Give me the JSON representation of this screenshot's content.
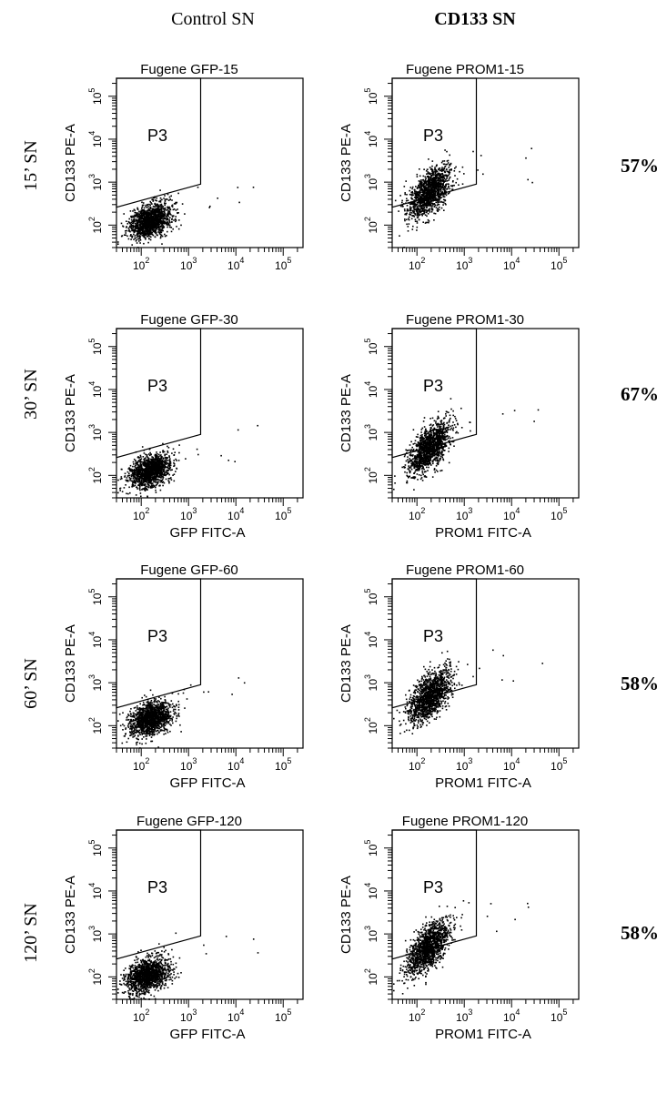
{
  "header": {
    "col_left": "Control SN",
    "col_right": "CD133 SN"
  },
  "rows": [
    {
      "label": "15’ SN",
      "percent": "57%"
    },
    {
      "label": "30’ SN",
      "percent": "67%"
    },
    {
      "label": "60’ SN",
      "percent": "58%"
    },
    {
      "label": "120’ SN",
      "percent": "58%"
    }
  ],
  "chart_data": [
    {
      "type": "scatter",
      "title": "Fugene GFP-15",
      "ylabel": "CD133 PE-A",
      "xlabel": "",
      "gate_label": "P3",
      "x_scale": "log",
      "y_scale": "log",
      "xticks": [
        "10^2",
        "10^3",
        "10^4",
        "10^5"
      ],
      "yticks": [
        "10^2",
        "10^3",
        "10^4",
        "10^5"
      ],
      "cloud": {
        "x_center": 150,
        "y_center": 130,
        "density": "dense"
      }
    },
    {
      "type": "scatter",
      "title": "Fugene PROM1-15",
      "ylabel": "CD133 PE-A",
      "xlabel": "",
      "gate_label": "P3",
      "x_scale": "log",
      "y_scale": "log",
      "xticks": [
        "10^2",
        "10^3",
        "10^4",
        "10^5"
      ],
      "yticks": [
        "10^2",
        "10^3",
        "10^4",
        "10^5"
      ],
      "cloud": {
        "x_center": 180,
        "y_center": 600,
        "density": "dense"
      }
    },
    {
      "type": "scatter",
      "title": "Fugene GFP-30",
      "ylabel": "CD133 PE-A",
      "xlabel": "GFP FITC-A",
      "gate_label": "P3",
      "x_scale": "log",
      "y_scale": "log",
      "xticks": [
        "10^2",
        "10^3",
        "10^4",
        "10^5"
      ],
      "yticks": [
        "10^2",
        "10^3",
        "10^4",
        "10^5"
      ],
      "cloud": {
        "x_center": 150,
        "y_center": 130,
        "density": "dense"
      }
    },
    {
      "type": "scatter",
      "title": "Fugene PROM1-30",
      "ylabel": "CD133 PE-A",
      "xlabel": "PROM1 FITC-A",
      "gate_label": "P3",
      "x_scale": "log",
      "y_scale": "log",
      "xticks": [
        "10^2",
        "10^3",
        "10^4",
        "10^5"
      ],
      "yticks": [
        "10^2",
        "10^3",
        "10^4",
        "10^5"
      ],
      "cloud": {
        "x_center": 180,
        "y_center": 450,
        "density": "dense"
      }
    },
    {
      "type": "scatter",
      "title": "Fugene GFP-60",
      "ylabel": "CD133 PE-A",
      "xlabel": "GFP FITC-A",
      "gate_label": "P3",
      "x_scale": "log",
      "y_scale": "log",
      "xticks": [
        "10^2",
        "10^3",
        "10^4",
        "10^5"
      ],
      "yticks": [
        "10^2",
        "10^3",
        "10^4",
        "10^5"
      ],
      "cloud": {
        "x_center": 150,
        "y_center": 150,
        "density": "dense"
      }
    },
    {
      "type": "scatter",
      "title": "Fugene PROM1-60",
      "ylabel": "CD133 PE-A",
      "xlabel": "PROM1 FITC-A",
      "gate_label": "P3",
      "x_scale": "log",
      "y_scale": "log",
      "xticks": [
        "10^2",
        "10^3",
        "10^4",
        "10^5"
      ],
      "yticks": [
        "10^2",
        "10^3",
        "10^4",
        "10^5"
      ],
      "cloud": {
        "x_center": 180,
        "y_center": 500,
        "density": "dense"
      }
    },
    {
      "type": "scatter",
      "title": "Fugene GFP-120",
      "ylabel": "CD133 PE-A",
      "xlabel": "GFP FITC-A",
      "gate_label": "P3",
      "x_scale": "log",
      "y_scale": "log",
      "xticks": [
        "10^2",
        "10^3",
        "10^4",
        "10^5"
      ],
      "yticks": [
        "10^2",
        "10^3",
        "10^4",
        "10^5"
      ],
      "cloud": {
        "x_center": 130,
        "y_center": 110,
        "density": "dense"
      }
    },
    {
      "type": "scatter",
      "title": "Fugene PROM1-120",
      "ylabel": "CD133 PE-A",
      "xlabel": "PROM1 FITC-A",
      "gate_label": "P3",
      "x_scale": "log",
      "y_scale": "log",
      "xticks": [
        "10^2",
        "10^3",
        "10^4",
        "10^5"
      ],
      "yticks": [
        "10^2",
        "10^3",
        "10^4",
        "10^5"
      ],
      "cloud": {
        "x_center": 170,
        "y_center": 500,
        "density": "dense"
      }
    }
  ]
}
